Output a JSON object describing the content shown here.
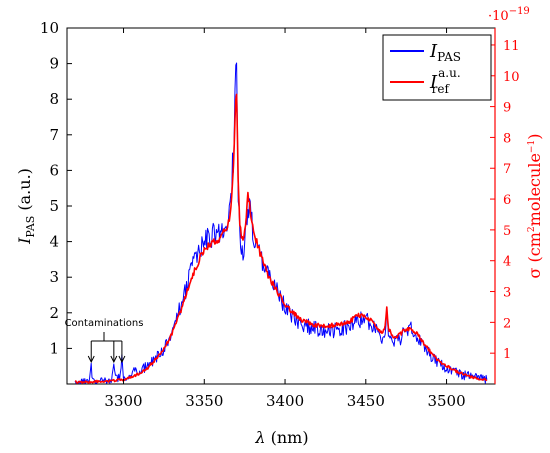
{
  "chart_data": {
    "type": "line",
    "xlabel_sym": "λ",
    "xlabel_unit": " (nm)",
    "ylabel_main": "I",
    "ylabel_sub": "PAS",
    "ylabel_unit": " (a.u.)",
    "y2label_main": "σ (cm",
    "y2label_sup1": "2",
    "y2label_mid": "molecule",
    "y2label_sup2": "−1",
    "y2label_end": ")",
    "y2_multiplier_base": "·10",
    "y2_multiplier_exp": "−19",
    "xlim": [
      3265,
      3530
    ],
    "ylim": [
      0,
      10
    ],
    "y2lim": [
      0,
      11.55
    ],
    "x_ticks": [
      3300,
      3350,
      3400,
      3450,
      3500
    ],
    "y_ticks": [
      1,
      2,
      3,
      4,
      5,
      6,
      7,
      8,
      9,
      10
    ],
    "y2_ticks": [
      1,
      2,
      3,
      4,
      5,
      6,
      7,
      8,
      9,
      10,
      11
    ],
    "legend": {
      "placement": "top-right",
      "entries": [
        {
          "main": "I",
          "sub": "PAS",
          "sup": ""
        },
        {
          "main": "I",
          "sub": "ref",
          "sup": "a.u."
        }
      ]
    },
    "annotation": {
      "text": "Contaminations",
      "x": [
        3280,
        3294,
        3299
      ]
    },
    "series": [
      {
        "name": "I_PAS",
        "color": "#0000ff",
        "axis": "left",
        "x": [
          3270,
          3275,
          3279,
          3280,
          3281,
          3285,
          3290,
          3293,
          3294,
          3295,
          3298,
          3299,
          3300,
          3303,
          3305,
          3310,
          3315,
          3320,
          3325,
          3330,
          3335,
          3340,
          3345,
          3350,
          3355,
          3358,
          3360,
          3362,
          3364,
          3366,
          3368,
          3369,
          3370,
          3371,
          3372,
          3374,
          3376,
          3377,
          3378,
          3380,
          3385,
          3390,
          3395,
          3400,
          3405,
          3410,
          3415,
          3420,
          3425,
          3430,
          3435,
          3440,
          3445,
          3450,
          3455,
          3460,
          3462,
          3463,
          3464,
          3466,
          3470,
          3475,
          3478,
          3480,
          3485,
          3490,
          3495,
          3500,
          3505,
          3510,
          3515,
          3520,
          3525
        ],
        "y": [
          0.05,
          0.05,
          0.1,
          0.5,
          0.1,
          0.06,
          0.08,
          0.15,
          0.5,
          0.15,
          0.2,
          0.7,
          0.2,
          0.25,
          0.3,
          0.4,
          0.5,
          0.75,
          1.0,
          1.5,
          2.1,
          2.9,
          3.6,
          4.0,
          4.2,
          4.4,
          4.3,
          4.5,
          4.6,
          5.0,
          6.4,
          8.0,
          9.4,
          5.5,
          4.0,
          3.5,
          4.5,
          5.1,
          5.0,
          4.3,
          3.6,
          3.0,
          2.6,
          2.2,
          1.9,
          1.7,
          1.6,
          1.55,
          1.5,
          1.5,
          1.55,
          1.6,
          1.8,
          1.8,
          1.6,
          1.3,
          1.5,
          2.1,
          1.5,
          1.1,
          1.2,
          1.5,
          1.55,
          1.45,
          1.1,
          0.8,
          0.6,
          0.45,
          0.35,
          0.25,
          0.2,
          0.15,
          0.12
        ]
      },
      {
        "name": "I_ref",
        "color": "#ff0000",
        "axis": "left",
        "x": [
          3270,
          3280,
          3290,
          3300,
          3305,
          3310,
          3315,
          3320,
          3325,
          3330,
          3335,
          3340,
          3345,
          3350,
          3355,
          3360,
          3364,
          3366,
          3368,
          3369,
          3370,
          3371,
          3372,
          3374,
          3376,
          3377,
          3378,
          3380,
          3385,
          3390,
          3395,
          3400,
          3405,
          3410,
          3415,
          3420,
          3425,
          3430,
          3435,
          3440,
          3445,
          3450,
          3455,
          3460,
          3462,
          3463,
          3464,
          3466,
          3470,
          3475,
          3478,
          3480,
          3485,
          3490,
          3495,
          3500,
          3505,
          3510,
          3515,
          3520,
          3525
        ],
        "y": [
          0.05,
          0.06,
          0.08,
          0.12,
          0.2,
          0.3,
          0.45,
          0.7,
          1.0,
          1.4,
          2.0,
          2.7,
          3.3,
          3.8,
          4.0,
          4.1,
          4.4,
          4.7,
          6.0,
          7.5,
          8.3,
          5.8,
          4.4,
          4.0,
          4.6,
          5.3,
          5.1,
          4.4,
          3.6,
          3.0,
          2.6,
          2.25,
          2.0,
          1.8,
          1.7,
          1.65,
          1.62,
          1.65,
          1.7,
          1.75,
          1.95,
          1.9,
          1.7,
          1.45,
          1.6,
          2.1,
          1.6,
          1.35,
          1.35,
          1.55,
          1.55,
          1.5,
          1.2,
          0.9,
          0.65,
          0.5,
          0.38,
          0.28,
          0.2,
          0.15,
          0.12
        ]
      }
    ]
  }
}
